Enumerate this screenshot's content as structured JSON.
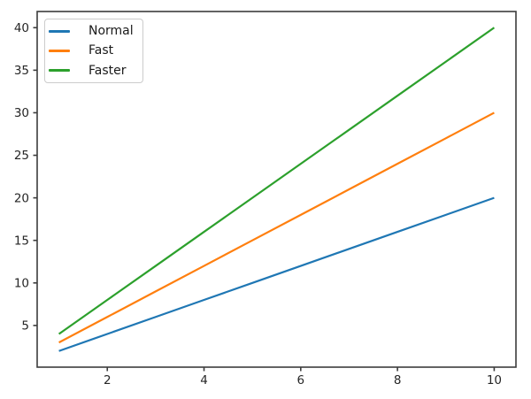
{
  "figure": {
    "background": "#ffffff",
    "axis_color": "#3c3c3c",
    "tick_label_color": "#262626"
  },
  "chart_data": {
    "type": "line",
    "title": "",
    "xlabel": "",
    "ylabel": "",
    "x": [
      1,
      2,
      3,
      4,
      5,
      6,
      7,
      8,
      9,
      10
    ],
    "series": [
      {
        "name": "Normal",
        "color": "#1f77b4",
        "values": [
          2,
          4,
          6,
          8,
          10,
          12,
          14,
          16,
          18,
          20
        ]
      },
      {
        "name": "Fast",
        "color": "#ff7f0e",
        "values": [
          3,
          6,
          9,
          12,
          15,
          18,
          21,
          24,
          27,
          30
        ]
      },
      {
        "name": "Faster",
        "color": "#2ca02c",
        "values": [
          4,
          8,
          12,
          16,
          20,
          24,
          28,
          32,
          36,
          40
        ]
      }
    ],
    "xlim": [
      0.55,
      10.45
    ],
    "ylim": [
      0.1,
      41.9
    ],
    "x_ticks": [
      2,
      4,
      6,
      8,
      10
    ],
    "y_ticks": [
      5,
      10,
      15,
      20,
      25,
      30,
      35,
      40
    ],
    "grid": false,
    "legend_position": "upper-left"
  }
}
